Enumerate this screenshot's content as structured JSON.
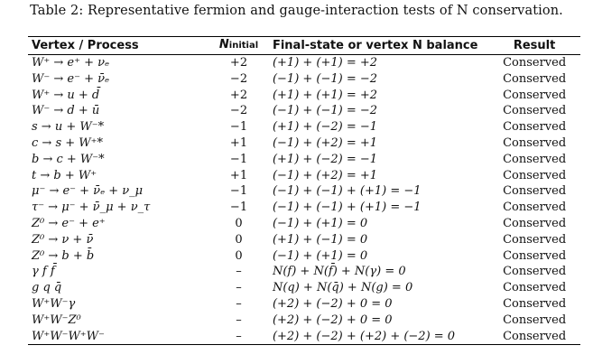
{
  "caption": "Table 2: Representative fermion and gauge-interaction tests of N conservation.",
  "headers": {
    "process": "Vertex / Process",
    "n_initial_main": "N",
    "n_initial_sub": "initial",
    "balance": "Final-state or vertex N balance",
    "result": "Result"
  },
  "rows": [
    {
      "process": "W⁺ → e⁺ + νₑ",
      "n_initial": "+2",
      "balance": "(+1) + (+1) = +2",
      "result": "Conserved"
    },
    {
      "process": "W⁻ → e⁻ + ν̄ₑ",
      "n_initial": "−2",
      "balance": "(−1) + (−1) = −2",
      "result": "Conserved"
    },
    {
      "process": "W⁺ → u + d̄",
      "n_initial": "+2",
      "balance": "(+1) + (+1) = +2",
      "result": "Conserved"
    },
    {
      "process": "W⁻ → d + ū",
      "n_initial": "−2",
      "balance": "(−1) + (−1) = −2",
      "result": "Conserved"
    },
    {
      "process": "s → u + W⁻*",
      "n_initial": "−1",
      "balance": "(+1) + (−2) = −1",
      "result": "Conserved"
    },
    {
      "process": "c → s + W⁺*",
      "n_initial": "+1",
      "balance": "(−1) + (+2) = +1",
      "result": "Conserved"
    },
    {
      "process": "b → c + W⁻*",
      "n_initial": "−1",
      "balance": "(+1) + (−2) = −1",
      "result": "Conserved"
    },
    {
      "process": "t → b + W⁺",
      "n_initial": "+1",
      "balance": "(−1) + (+2) = +1",
      "result": "Conserved"
    },
    {
      "process": "μ⁻ → e⁻ + ν̄ₑ + ν_μ",
      "n_initial": "−1",
      "balance": "(−1) + (−1) + (+1) = −1",
      "result": "Conserved"
    },
    {
      "process": "τ⁻ → μ⁻ + ν̄_μ + ν_τ",
      "n_initial": "−1",
      "balance": "(−1) + (−1) + (+1) = −1",
      "result": "Conserved"
    },
    {
      "process": "Z⁰ → e⁻ + e⁺",
      "n_initial": "0",
      "balance": "(−1) + (+1) = 0",
      "result": "Conserved"
    },
    {
      "process": "Z⁰ → ν + ν̄",
      "n_initial": "0",
      "balance": "(+1) + (−1) = 0",
      "result": "Conserved"
    },
    {
      "process": "Z⁰ → b + b̄",
      "n_initial": "0",
      "balance": "(−1) + (+1) = 0",
      "result": "Conserved"
    },
    {
      "process": "γ f f̄",
      "n_initial": "–",
      "balance": "N(f) + N(f̄) + N(γ) = 0",
      "result": "Conserved"
    },
    {
      "process": "g q q̄",
      "n_initial": "–",
      "balance": "N(q) + N(q̄) + N(g) = 0",
      "result": "Conserved"
    },
    {
      "process": "W⁺W⁻γ",
      "n_initial": "–",
      "balance": "(+2) + (−2) + 0 = 0",
      "result": "Conserved"
    },
    {
      "process": "W⁺W⁻Z⁰",
      "n_initial": "–",
      "balance": "(+2) + (−2) + 0 = 0",
      "result": "Conserved"
    },
    {
      "process": "W⁺W⁻W⁺W⁻",
      "n_initial": "–",
      "balance": "(+2) + (−2) + (+2) + (−2) = 0",
      "result": "Conserved"
    }
  ]
}
